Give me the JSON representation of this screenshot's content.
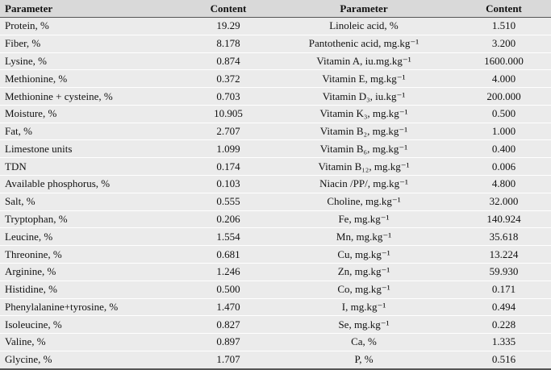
{
  "table": {
    "header": [
      "Parameter",
      "Content",
      "Parameter",
      "Content"
    ],
    "rows": [
      [
        "Protein, %",
        "19.29",
        "Linoleic acid, %",
        "1.510"
      ],
      [
        "Fiber, %",
        "8.178",
        "Pantothenic acid, mg.kg⁻¹",
        "3.200"
      ],
      [
        "Lysine, %",
        "0.874",
        "Vitamin A, iu.mg.kg⁻¹",
        "1600.000"
      ],
      [
        "Methionine, %",
        "0.372",
        "Vitamin E, mg.kg⁻¹",
        "4.000"
      ],
      [
        "Methionine + cysteine, %",
        "0.703",
        "Vitamin D₃, iu.kg⁻¹",
        "200.000"
      ],
      [
        "Moisture, %",
        "10.905",
        "Vitamin K₃, mg.kg⁻¹",
        "0.500"
      ],
      [
        "Fat, %",
        "2.707",
        "Vitamin B₂, mg.kg⁻¹",
        "1.000"
      ],
      [
        "Limestone units",
        "1.099",
        "Vitamin B₆, mg.kg⁻¹",
        "0.400"
      ],
      [
        "TDN",
        "0.174",
        "Vitamin B₁₂, mg.kg⁻¹",
        "0.006"
      ],
      [
        "Available phosphorus, %",
        "0.103",
        "Niacin /PP/, mg.kg⁻¹",
        "4.800"
      ],
      [
        "Salt, %",
        "0.555",
        "Choline, mg.kg⁻¹",
        "32.000"
      ],
      [
        "Tryptophan, %",
        "0.206",
        "Fe, mg.kg⁻¹",
        "140.924"
      ],
      [
        "Leucine, %",
        "1.554",
        "Mn, mg.kg⁻¹",
        "35.618"
      ],
      [
        "Threonine, %",
        "0.681",
        "Cu, mg.kg⁻¹",
        "13.224"
      ],
      [
        "Arginine, %",
        "1.246",
        "Zn, mg.kg⁻¹",
        "59.930"
      ],
      [
        "Histidine, %",
        "0.500",
        "Co, mg.kg⁻¹",
        "0.171"
      ],
      [
        "Phenylalanine+tyrosine, %",
        "1.470",
        "I, mg.kg⁻¹",
        "0.494"
      ],
      [
        "Isoleucine, %",
        "0.827",
        "Se, mg.kg⁻¹",
        "0.228"
      ],
      [
        "Valine, %",
        "0.897",
        "Ca, %",
        "1.335"
      ],
      [
        "Glycine, %",
        "1.707",
        "P, %",
        "0.516"
      ]
    ]
  }
}
